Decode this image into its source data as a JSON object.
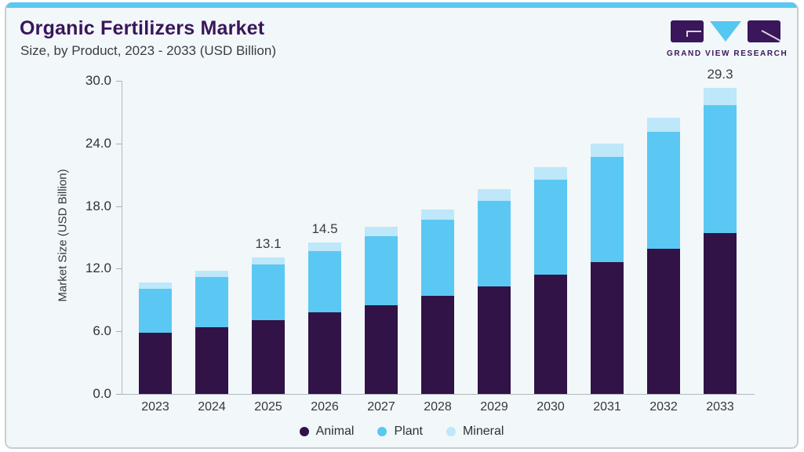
{
  "card": {
    "title": "Organic Fertilizers Market",
    "subtitle": "Size, by Product, 2023 - 2033 (USD Billion)",
    "accent_color": "#5BC8F0",
    "background": "#F2F7FA"
  },
  "logo": {
    "text": "GRAND VIEW RESEARCH",
    "purple": "#3A165A",
    "blue": "#56C7F0",
    "mark_line": "#d5d7dd"
  },
  "chart_data": {
    "type": "bar",
    "stacked": true,
    "title": "Organic Fertilizers Market Size, by Product, 2023 - 2033 (USD Billion)",
    "xlabel": "",
    "ylabel": "Market Size (USD Billion)",
    "ylim": [
      0,
      30
    ],
    "yticks": [
      0,
      6,
      12,
      18,
      24,
      30
    ],
    "ytick_labels": [
      "0.0",
      "6.0",
      "12.0",
      "18.0",
      "24.0",
      "30.0"
    ],
    "grid": false,
    "legend_position": "bottom",
    "categories": [
      "2023",
      "2024",
      "2025",
      "2026",
      "2027",
      "2028",
      "2029",
      "2030",
      "2031",
      "2032",
      "2033"
    ],
    "series": [
      {
        "name": "Animal",
        "color": "#311347",
        "values": [
          5.9,
          6.4,
          7.1,
          7.8,
          8.5,
          9.4,
          10.3,
          11.4,
          12.6,
          13.9,
          15.4
        ]
      },
      {
        "name": "Plant",
        "color": "#5AC8F2",
        "values": [
          4.2,
          4.8,
          5.3,
          5.9,
          6.6,
          7.3,
          8.2,
          9.1,
          10.1,
          11.2,
          12.3
        ]
      },
      {
        "name": "Mineral",
        "color": "#BEE7FA",
        "values": [
          0.6,
          0.6,
          0.7,
          0.8,
          0.9,
          1.0,
          1.1,
          1.2,
          1.3,
          1.4,
          1.6
        ]
      }
    ],
    "totals": [
      10.7,
      11.8,
      13.1,
      14.5,
      16.0,
      17.7,
      19.6,
      21.7,
      24.0,
      26.5,
      29.3
    ],
    "bar_value_labels": [
      "",
      "",
      "13.1",
      "14.5",
      "",
      "",
      "",
      "",
      "",
      "",
      "29.3"
    ]
  }
}
